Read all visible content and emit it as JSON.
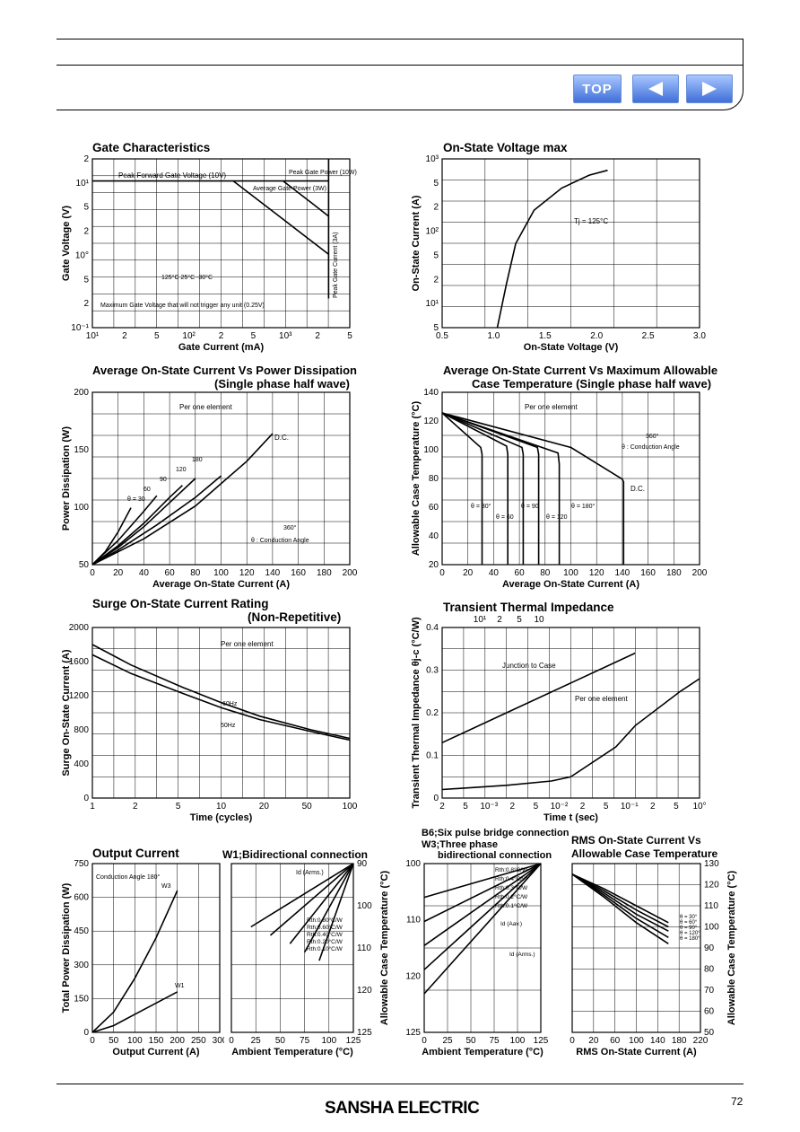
{
  "nav": {
    "top_label": "TOP",
    "prev_icon": "left-arrow-icon",
    "next_icon": "right-arrow-icon"
  },
  "footer": {
    "brand": "SANSHA ELECTRIC",
    "page": "72"
  },
  "charts": {
    "gate": {
      "title": "Gate Characteristics",
      "xlabel": "Gate Current (mA)",
      "ylabel": "Gate Voltage (V)",
      "xticks": [
        "10¹",
        "2",
        "5",
        "10²",
        "2",
        "5",
        "10³",
        "2",
        "5"
      ],
      "yticks": [
        "2",
        "10¹",
        "5",
        "2",
        "10°",
        "5",
        "2",
        "10⁻¹"
      ],
      "ann_peak_fwd": "Peak Forward Gate Voltage (10V)",
      "ann_peak_power": "Peak Gate Power (10W)",
      "ann_avg_power": "Average Gate Power (3W)",
      "ann_peak_current": "Peak Gate Current (3A)",
      "ann_temps": "125°C  25°C  -30°C",
      "ann_min": "Maximum Gate Voltage that will not trigger any unit (0.25V)"
    },
    "onstate": {
      "title": "On-State Voltage max",
      "xlabel": "On-State Voltage (V)",
      "ylabel": "On-State Current (A)",
      "xticks": [
        "0.5",
        "1.0",
        "1.5",
        "2.0",
        "2.5",
        "3.0"
      ],
      "yticks": [
        "10³",
        "5",
        "2",
        "10²",
        "5",
        "2",
        "10¹",
        "5"
      ],
      "ann_tj": "Tj = 125°C"
    },
    "power": {
      "title": "Average On-State Current Vs Power Dissipation",
      "subtitle": "(Single phase half wave)",
      "xlabel": "Average On-State Current (A)",
      "ylabel": "Power Dissipation (W)",
      "xticks": [
        "0",
        "20",
        "40",
        "60",
        "80",
        "100",
        "120",
        "140",
        "160",
        "180",
        "200"
      ],
      "yticks": [
        "200",
        "150",
        "100",
        "50"
      ],
      "ann_per": "Per one element",
      "ann_dc": "D.C.",
      "labels": [
        "θ = 30",
        "60",
        "90",
        "120",
        "180"
      ],
      "ann_cond": "θ : Conduction Angle",
      "ann_360": "360°"
    },
    "case": {
      "title": "Average On-State Current Vs Maximum Allowable",
      "subtitle": "Case Temperature (Single phase half wave)",
      "xlabel": "Average On-State Current (A)",
      "ylabel": "Allowable Case Temperature (°C)",
      "xticks": [
        "0",
        "20",
        "40",
        "60",
        "80",
        "100",
        "120",
        "140",
        "160",
        "180",
        "200"
      ],
      "yticks": [
        "140",
        "120",
        "100",
        "80",
        "60",
        "40",
        "20"
      ],
      "ann_per": "Per one element",
      "ann_dc": "D.C.",
      "labels": [
        "θ = 30°",
        "θ = 60",
        "θ = 90",
        "θ = 120",
        "θ = 180°"
      ],
      "ann_cond": "θ : Conduction Angle",
      "ann_360": "360°"
    },
    "surge": {
      "title": "Surge On-State Current Rating",
      "subtitle": "(Non-Repetitive)",
      "xlabel": "Time (cycles)",
      "ylabel": "Surge On-State Current (A)",
      "xticks": [
        "1",
        "2",
        "5",
        "10",
        "20",
        "50",
        "100"
      ],
      "yticks": [
        "2000",
        "1600",
        "1200",
        "800",
        "400",
        "0"
      ],
      "ann_per": "Per one element",
      "ann_60": "60Hz",
      "ann_50": "50Hz"
    },
    "thermal": {
      "title": "Transient Thermal Impedance",
      "xlabel": "Time  t (sec)",
      "ylabel": "Transient Thermal Impedance θj-c (°C/W)",
      "xticks": [
        "2",
        "5",
        "10⁻³",
        "2",
        "5",
        "10⁻²",
        "2",
        "5",
        "10⁻¹",
        "2",
        "5",
        "10°"
      ],
      "xticks_top": [
        "10¹",
        "2",
        "5",
        "10"
      ],
      "yticks": [
        "0.4",
        "0.3",
        "0.2",
        "0.1",
        "0"
      ],
      "ann_junction": "Junction to Case",
      "ann_per": "Per one element"
    },
    "output": {
      "title": "Output Current",
      "subtitle": "W1;Bidirectional connection",
      "xlabel": "Output Current (A)",
      "ylabel": "Total Power Dissipation (W)",
      "xticks": [
        "0",
        "50",
        "100",
        "150",
        "200",
        "250",
        "300"
      ],
      "yticks": [
        "750",
        "600",
        "450",
        "300",
        "150",
        "0"
      ],
      "ann_angle": "Conduction Angle  180°",
      "ann_w3": "W3",
      "ann_w1": "W1"
    },
    "ambient": {
      "xlabel": "Ambient Temperature (°C)",
      "ylabel": "Allowable Case Temperature (°C)",
      "xticks": [
        "0",
        "25",
        "50",
        "75",
        "100",
        "125"
      ],
      "yticks": [
        "90",
        "100",
        "110",
        "120",
        "125"
      ],
      "ann_id": "Id (Arms.)",
      "rth": [
        "Rth:0.80°C/W",
        "Rth:0.60°C/W",
        "Rth:0.40°C/W",
        "Rth:0.20°C/W",
        "Rth:0.10°C/W"
      ]
    },
    "b6": {
      "title1": "B6;Six pulse bridge connection",
      "title2": "W3;Three phase",
      "title3": "bidirectional connection",
      "xlabel": "Ambient Temperature (°C)",
      "xticks": [
        "0",
        "25",
        "50",
        "75",
        "100",
        "125"
      ],
      "yticks": [
        "100",
        "110",
        "120",
        "125"
      ],
      "rth": [
        "Rth:0.8°C/W",
        "Rth:0.4°C/W",
        "Rth:0.3°C/W",
        "Rth:0.2°C/W",
        "Rth:0.1°C/W"
      ],
      "ann_id": "Id (Aav.)",
      "ann_idr": "Id (Arms.)"
    },
    "rms": {
      "title1": "RMS On-State Current Vs",
      "title2": "Allowable Case Temperature",
      "xlabel": "RMS On-State Current (A)",
      "ylabel": "Allowable Case Temperature (°C)",
      "xticks": [
        "0",
        "20",
        "60",
        "100",
        "140",
        "180",
        "220"
      ],
      "yticks": [
        "130",
        "120",
        "110",
        "100",
        "90",
        "80",
        "70",
        "60",
        "50"
      ],
      "labels": [
        "θ = 30°",
        "θ = 60°",
        "θ = 90°",
        "θ = 120°",
        "θ = 180°"
      ]
    }
  },
  "chart_data": [
    {
      "type": "line",
      "title": "Gate Characteristics",
      "xlabel": "Gate Current (mA)",
      "ylabel": "Gate Voltage (V)",
      "x_scale": "log",
      "y_scale": "log",
      "xlim": [
        10,
        5000
      ],
      "ylim": [
        0.1,
        20
      ],
      "series": [
        {
          "name": "Peak Forward Gate Voltage (10V)",
          "x": [
            10,
            3000
          ],
          "y": [
            10,
            10
          ]
        },
        {
          "name": "Peak Gate Power (10W)",
          "x": [
            1000,
            2000,
            3000
          ],
          "y": [
            10,
            5,
            3.3
          ]
        },
        {
          "name": "Average Gate Power (3W)",
          "x": [
            300,
            1000,
            3000
          ],
          "y": [
            10,
            3,
            1
          ]
        },
        {
          "name": "Peak Gate Current (3A)",
          "x": [
            3000,
            3000
          ],
          "y": [
            0.25,
            20
          ]
        }
      ]
    },
    {
      "type": "line",
      "title": "On-State Voltage max",
      "xlabel": "On-State Voltage (V)",
      "ylabel": "On-State Current (A)",
      "y_scale": "log",
      "xlim": [
        0.2,
        3.0
      ],
      "ylim": [
        5,
        1000
      ],
      "series": [
        {
          "name": "Tj = 125°C",
          "x": [
            0.8,
            0.9,
            1.0,
            1.2,
            1.5,
            1.8,
            2.0
          ],
          "y": [
            5,
            20,
            70,
            200,
            400,
            600,
            700
          ]
        }
      ]
    },
    {
      "type": "line",
      "title": "Average On-State Current Vs Power Dissipation",
      "xlabel": "Average On-State Current (A)",
      "ylabel": "Power Dissipation (W)",
      "xlim": [
        0,
        200
      ],
      "ylim": [
        0,
        200
      ],
      "series": [
        {
          "name": "θ = 30",
          "x": [
            0,
            10,
            20,
            30
          ],
          "y": [
            0,
            15,
            38,
            66
          ]
        },
        {
          "name": "60",
          "x": [
            0,
            20,
            40,
            50
          ],
          "y": [
            0,
            28,
            62,
            80
          ]
        },
        {
          "name": "90",
          "x": [
            0,
            20,
            40,
            60,
            70
          ],
          "y": [
            0,
            22,
            48,
            78,
            92
          ]
        },
        {
          "name": "120",
          "x": [
            0,
            20,
            40,
            60,
            80
          ],
          "y": [
            0,
            20,
            44,
            72,
            100
          ]
        },
        {
          "name": "180",
          "x": [
            0,
            20,
            50,
            80,
            100
          ],
          "y": [
            0,
            17,
            46,
            78,
            103
          ]
        },
        {
          "name": "D.C.",
          "x": [
            0,
            40,
            80,
            120,
            140
          ],
          "y": [
            0,
            30,
            68,
            120,
            152
          ]
        }
      ]
    },
    {
      "type": "line",
      "title": "Average On-State Current Vs Maximum Allowable Case Temperature",
      "xlabel": "Average On-State Current (A)",
      "ylabel": "Allowable Case Temperature (°C)",
      "xlim": [
        0,
        200
      ],
      "ylim": [
        15,
        140
      ],
      "series": [
        {
          "name": "θ = 30°",
          "x": [
            0,
            30,
            31,
            31
          ],
          "y": [
            125,
            100,
            95,
            15
          ]
        },
        {
          "name": "θ = 60",
          "x": [
            0,
            50,
            51,
            51
          ],
          "y": [
            125,
            101,
            95,
            15
          ]
        },
        {
          "name": "θ = 90",
          "x": [
            0,
            62,
            63,
            63
          ],
          "y": [
            125,
            100,
            95,
            15
          ]
        },
        {
          "name": "θ = 120",
          "x": [
            0,
            74,
            75,
            75
          ],
          "y": [
            125,
            100,
            95,
            15
          ]
        },
        {
          "name": "θ = 180°",
          "x": [
            0,
            90,
            91,
            91
          ],
          "y": [
            125,
            96,
            88,
            15
          ]
        },
        {
          "name": "D.C.",
          "x": [
            0,
            100,
            140,
            141,
            141
          ],
          "y": [
            125,
            100,
            77,
            75,
            15
          ]
        }
      ]
    },
    {
      "type": "line",
      "title": "Surge On-State Current Rating (Non-Repetitive)",
      "xlabel": "Time (cycles)",
      "ylabel": "Surge On-State Current (A)",
      "x_scale": "log",
      "xlim": [
        1,
        100
      ],
      "ylim": [
        0,
        2000
      ],
      "series": [
        {
          "name": "60Hz",
          "x": [
            1,
            2,
            5,
            10,
            20,
            50,
            100
          ],
          "y": [
            1800,
            1560,
            1300,
            1120,
            960,
            800,
            700
          ]
        },
        {
          "name": "50Hz",
          "x": [
            1,
            2,
            5,
            10,
            20,
            50,
            100
          ],
          "y": [
            1680,
            1460,
            1230,
            1060,
            920,
            780,
            680
          ]
        }
      ]
    },
    {
      "type": "line",
      "title": "Transient Thermal Impedance",
      "xlabel": "Time t (sec)",
      "ylabel": "Transient Thermal Impedance θj-c (°C/W)",
      "x_scale": "log",
      "xlim": [
        0.001,
        10
      ],
      "ylim": [
        0,
        0.4
      ],
      "series": [
        {
          "name": "Per one element",
          "x": [
            0.001,
            0.01,
            0.05,
            0.1,
            0.5,
            1,
            5,
            10
          ],
          "y": [
            0.02,
            0.03,
            0.04,
            0.05,
            0.12,
            0.17,
            0.25,
            0.28
          ]
        },
        {
          "name": "Junction to Case",
          "x": [
            0.001,
            0.01,
            0.1,
            1
          ],
          "y": [
            0.13,
            0.2,
            0.27,
            0.34
          ]
        }
      ]
    },
    {
      "type": "line",
      "title": "Output Current",
      "xlabel": "Output Current (A)",
      "ylabel": "Total Power Dissipation (W)",
      "xlim": [
        0,
        300
      ],
      "ylim": [
        0,
        750
      ],
      "series": [
        {
          "name": "W3",
          "x": [
            0,
            50,
            100,
            150,
            200
          ],
          "y": [
            0,
            90,
            240,
            420,
            630
          ]
        },
        {
          "name": "W1",
          "x": [
            0,
            50,
            100,
            150,
            200
          ],
          "y": [
            0,
            30,
            80,
            130,
            180
          ]
        }
      ]
    },
    {
      "type": "line",
      "xlabel": "Ambient Temperature (°C)",
      "ylabel": "Allowable Case Temperature (°C)",
      "xlim": [
        0,
        125
      ],
      "ylim": [
        85,
        125
      ],
      "series": [
        {
          "name": "Rth:0.80°C/W",
          "x": [
            20,
            125
          ],
          "y": [
            110,
            125
          ]
        },
        {
          "name": "Rth:0.60°C/W",
          "x": [
            40,
            125
          ],
          "y": [
            108,
            125
          ]
        },
        {
          "name": "Rth:0.40°C/W",
          "x": [
            60,
            125
          ],
          "y": [
            106,
            125
          ]
        },
        {
          "name": "Rth:0.20°C/W",
          "x": [
            75,
            125
          ],
          "y": [
            104,
            125
          ]
        },
        {
          "name": "Rth:0.10°C/W",
          "x": [
            90,
            125
          ],
          "y": [
            102,
            125
          ]
        }
      ]
    },
    {
      "type": "line",
      "title": "B6;Six pulse bridge connection W3;Three phase bidirectional connection",
      "xlabel": "Ambient Temperature (°C)",
      "xlim": [
        0,
        125
      ],
      "ylim": [
        90,
        125
      ],
      "series": [
        {
          "name": "Rth:0.8°C/W",
          "x": [
            0,
            125
          ],
          "y": [
            98,
            125
          ]
        },
        {
          "name": "Rth:0.4°C/W",
          "x": [
            0,
            125
          ],
          "y": [
            103,
            125
          ]
        },
        {
          "name": "Rth:0.3°C/W",
          "x": [
            0,
            125
          ],
          "y": [
            108,
            125
          ]
        },
        {
          "name": "Rth:0.2°C/W",
          "x": [
            0,
            125
          ],
          "y": [
            113,
            125
          ]
        },
        {
          "name": "Rth:0.1°C/W",
          "x": [
            0,
            125
          ],
          "y": [
            118,
            125
          ]
        }
      ]
    },
    {
      "type": "line",
      "title": "RMS On-State Current Vs Allowable Case Temperature",
      "xlabel": "RMS On-State Current (A)",
      "ylabel": "Allowable Case Temperature (°C)",
      "xlim": [
        0,
        240
      ],
      "ylim": [
        50,
        130
      ],
      "series": [
        {
          "name": "θ = 30°",
          "x": [
            0,
            60,
            120,
            180
          ],
          "y": [
            125,
            118,
            110,
            102
          ]
        },
        {
          "name": "θ = 60°",
          "x": [
            0,
            60,
            120,
            180
          ],
          "y": [
            125,
            117,
            108,
            100
          ]
        },
        {
          "name": "θ = 90°",
          "x": [
            0,
            60,
            120,
            180
          ],
          "y": [
            125,
            116,
            106,
            98
          ]
        },
        {
          "name": "θ = 120°",
          "x": [
            0,
            60,
            120,
            180
          ],
          "y": [
            125,
            115,
            104,
            95
          ]
        },
        {
          "name": "θ = 180°",
          "x": [
            0,
            60,
            120,
            180
          ],
          "y": [
            125,
            114,
            102,
            92
          ]
        }
      ]
    }
  ]
}
